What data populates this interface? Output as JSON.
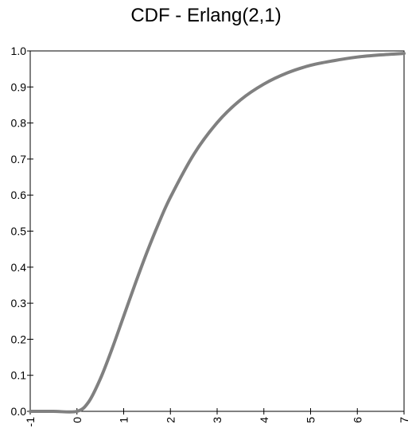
{
  "chart_data": {
    "type": "line",
    "title": "CDF - Erlang(2,1)",
    "xlabel": "",
    "ylabel": "",
    "xlim": [
      -1,
      7
    ],
    "ylim": [
      0,
      1
    ],
    "grid": false,
    "x_ticks": [
      "-1",
      "0",
      "1",
      "2",
      "3",
      "4",
      "5",
      "6",
      "7"
    ],
    "y_ticks": [
      "0.0",
      "0.1",
      "0.2",
      "0.3",
      "0.4",
      "0.5",
      "0.6",
      "0.7",
      "0.8",
      "0.9",
      "1.0"
    ],
    "line_color": "#808080",
    "series": [
      {
        "x": [
          -1,
          -0.5,
          0,
          0.25,
          0.5,
          0.75,
          1,
          1.25,
          1.5,
          1.75,
          2,
          2.5,
          3,
          3.5,
          4,
          4.5,
          5,
          5.5,
          6,
          6.5,
          7
        ],
        "values": [
          0,
          0,
          0,
          0.026,
          0.09,
          0.173,
          0.264,
          0.355,
          0.442,
          0.522,
          0.594,
          0.713,
          0.801,
          0.864,
          0.908,
          0.939,
          0.96,
          0.973,
          0.983,
          0.989,
          0.993
        ]
      }
    ]
  }
}
